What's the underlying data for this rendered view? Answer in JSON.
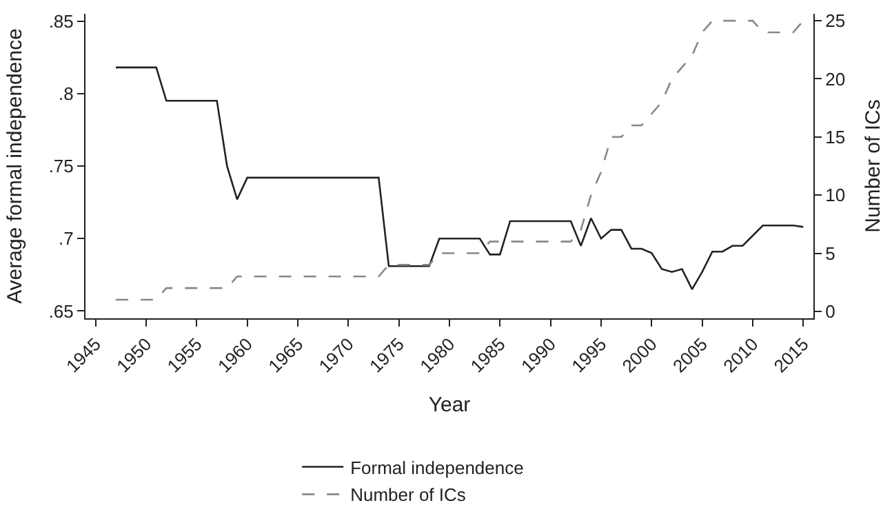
{
  "chart_data": {
    "type": "line",
    "xlabel": "Year",
    "ylabel": "Average formal independence",
    "y2label": "Number of ICs",
    "x": [
      1947,
      1948,
      1949,
      1950,
      1951,
      1952,
      1953,
      1954,
      1955,
      1956,
      1957,
      1958,
      1959,
      1960,
      1961,
      1962,
      1963,
      1964,
      1965,
      1966,
      1967,
      1968,
      1969,
      1970,
      1971,
      1972,
      1973,
      1974,
      1975,
      1976,
      1977,
      1978,
      1979,
      1980,
      1981,
      1982,
      1983,
      1984,
      1985,
      1986,
      1987,
      1988,
      1989,
      1990,
      1991,
      1992,
      1993,
      1994,
      1995,
      1996,
      1997,
      1998,
      1999,
      2000,
      2001,
      2002,
      2003,
      2004,
      2005,
      2006,
      2007,
      2008,
      2009,
      2010,
      2011,
      2012,
      2013,
      2014,
      2015
    ],
    "series": [
      {
        "name": "Formal independence",
        "color": "#222222",
        "line_style": "solid",
        "values": [
          0.818,
          0.818,
          0.818,
          0.818,
          0.818,
          0.795,
          0.795,
          0.795,
          0.795,
          0.795,
          0.795,
          0.75,
          0.727,
          0.742,
          0.742,
          0.742,
          0.742,
          0.742,
          0.742,
          0.742,
          0.742,
          0.742,
          0.742,
          0.742,
          0.742,
          0.742,
          0.742,
          0.681,
          0.681,
          0.681,
          0.681,
          0.681,
          0.7,
          0.7,
          0.7,
          0.7,
          0.7,
          0.689,
          0.689,
          0.712,
          0.712,
          0.712,
          0.712,
          0.712,
          0.712,
          0.712,
          0.695,
          0.714,
          0.7,
          0.706,
          0.706,
          0.693,
          0.693,
          0.69,
          0.679,
          0.677,
          0.679,
          0.665,
          0.677,
          0.691,
          0.691,
          0.695,
          0.695,
          0.702,
          0.709,
          0.709,
          0.709,
          0.709,
          0.708
        ]
      },
      {
        "name": "Number of ICs",
        "color": "#888888",
        "line_style": "dashed",
        "axis": "y2",
        "values": [
          1,
          1,
          1,
          1,
          1,
          2,
          2,
          2,
          2,
          2,
          2,
          2,
          3,
          3,
          3,
          3,
          3,
          3,
          3,
          3,
          3,
          3,
          3,
          3,
          3,
          3,
          3,
          4,
          4,
          4,
          4,
          4,
          5,
          5,
          5,
          5,
          5,
          6,
          6,
          6,
          6,
          6,
          6,
          6,
          6,
          6,
          7,
          10,
          12,
          15,
          15,
          16,
          16,
          17,
          18,
          20,
          21,
          22,
          24,
          25,
          25,
          25,
          25,
          25,
          24,
          24,
          24,
          24,
          25
        ]
      }
    ],
    "xlim": [
      1944,
      2016
    ],
    "xticks": [
      1945,
      1950,
      1955,
      1960,
      1965,
      1970,
      1975,
      1980,
      1985,
      1990,
      1995,
      2000,
      2005,
      2010,
      2015
    ],
    "ylim": [
      0.645,
      0.855
    ],
    "yticks": [
      {
        "value": 0.65,
        "label": ".65"
      },
      {
        "value": 0.7,
        "label": ".7"
      },
      {
        "value": 0.75,
        "label": ".75"
      },
      {
        "value": 0.8,
        "label": ".8"
      },
      {
        "value": 0.85,
        "label": ".85"
      }
    ],
    "y2lim": [
      -0.6,
      25.6
    ],
    "y2ticks": [
      0,
      5,
      10,
      15,
      20,
      25
    ],
    "legend": "bottom",
    "marker": "none"
  }
}
